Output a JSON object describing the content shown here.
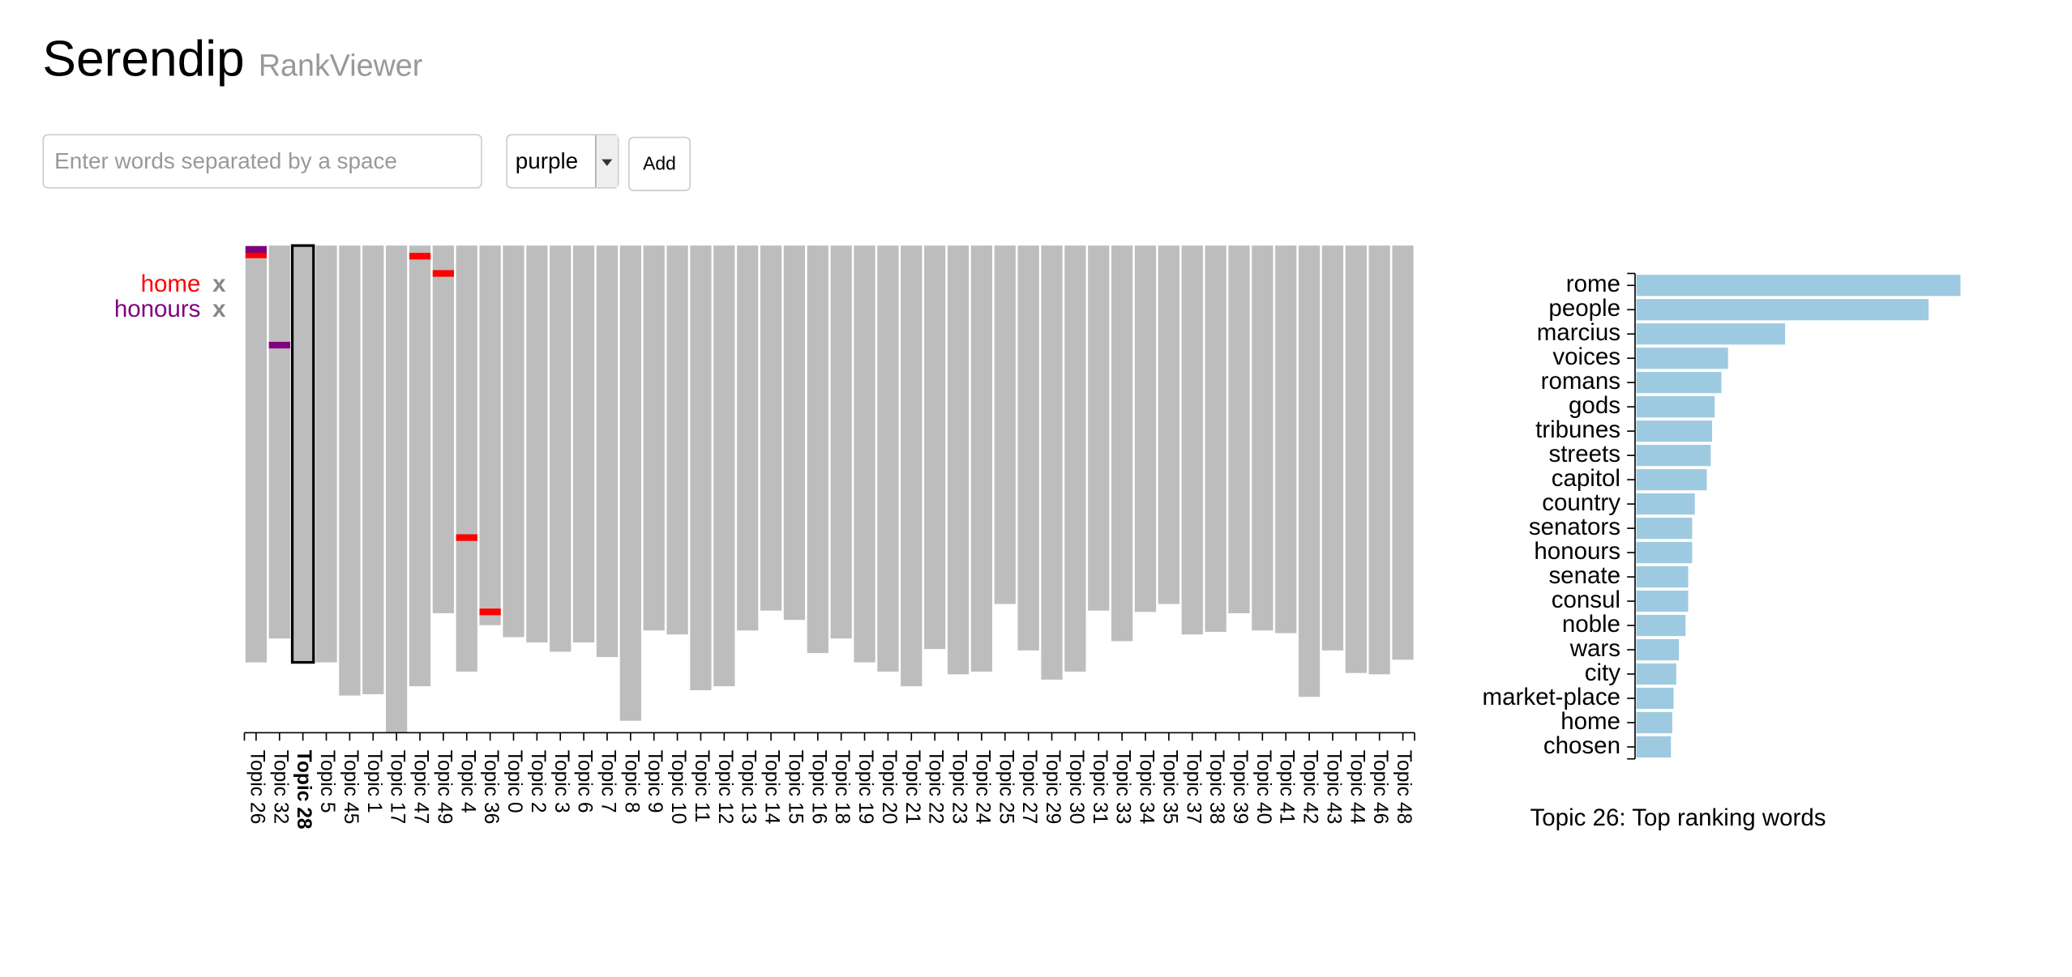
{
  "header": {
    "title": "Serendip",
    "subtitle": "RankViewer"
  },
  "controls": {
    "input_placeholder": "Enter words separated by a space",
    "color_select": "purple",
    "add_button": "Add"
  },
  "word_list": [
    {
      "word": "home",
      "color": "#ff0000",
      "remove": "x",
      "ranks": [
        7,
        null,
        null,
        null,
        null,
        null,
        null,
        8,
        21,
        220,
        276,
        null,
        null,
        null,
        null,
        null,
        null,
        null,
        null,
        null,
        null,
        null,
        null,
        null,
        null,
        null,
        null,
        null,
        null,
        null,
        null,
        null,
        null,
        null,
        null,
        null,
        null,
        null,
        null,
        null,
        null,
        null,
        null,
        null,
        null,
        null,
        null,
        null,
        null,
        null
      ]
    },
    {
      "word": "honours",
      "color": "#800080",
      "remove": "x",
      "ranks": [
        3,
        75,
        null,
        null,
        null,
        null,
        null,
        null,
        null,
        null,
        null,
        null,
        null,
        null,
        null,
        null,
        null,
        null,
        null,
        null,
        null,
        null,
        null,
        null,
        null,
        null,
        null,
        null,
        null,
        null,
        null,
        null,
        null,
        null,
        null,
        null,
        null,
        null,
        null,
        null,
        null,
        null,
        null,
        null,
        null,
        null,
        null,
        null,
        null,
        null
      ]
    }
  ],
  "rank_chart": {
    "type": "bar",
    "color": "#bdbdbd",
    "selected": 2,
    "categories": [
      "Topic 26",
      "Topic 32",
      "Topic 28",
      "Topic 5",
      "Topic 45",
      "Topic 1",
      "Topic 17",
      "Topic 47",
      "Topic 49",
      "Topic 4",
      "Topic 36",
      "Topic 0",
      "Topic 2",
      "Topic 3",
      "Topic 6",
      "Topic 7",
      "Topic 8",
      "Topic 9",
      "Topic 10",
      "Topic 11",
      "Topic 12",
      "Topic 13",
      "Topic 14",
      "Topic 15",
      "Topic 16",
      "Topic 18",
      "Topic 19",
      "Topic 20",
      "Topic 21",
      "Topic 22",
      "Topic 23",
      "Topic 24",
      "Topic 25",
      "Topic 27",
      "Topic 29",
      "Topic 30",
      "Topic 31",
      "Topic 33",
      "Topic 34",
      "Topic 35",
      "Topic 37",
      "Topic 38",
      "Topic 39",
      "Topic 40",
      "Topic 41",
      "Topic 42",
      "Topic 43",
      "Topic 44",
      "Topic 46",
      "Topic 48"
    ],
    "values": [
      314,
      296,
      314,
      314,
      339,
      338,
      367,
      332,
      277,
      321,
      286,
      295,
      299,
      306,
      299,
      310,
      358,
      290,
      293,
      335,
      332,
      290,
      275,
      282,
      307,
      296,
      314,
      321,
      332,
      304,
      323,
      321,
      270,
      305,
      327,
      321,
      275,
      298,
      276,
      270,
      293,
      291,
      277,
      290,
      292,
      340,
      305,
      322,
      323,
      312
    ]
  },
  "top_words": {
    "type": "bar",
    "title": "Topic 26: Top ranking words",
    "color": "#9ecae1",
    "categories": [
      "rome",
      "people",
      "marcius",
      "voices",
      "romans",
      "gods",
      "tribunes",
      "streets",
      "capitol",
      "country",
      "senators",
      "honours",
      "senate",
      "consul",
      "noble",
      "wars",
      "city",
      "market-place",
      "home",
      "chosen"
    ],
    "values": [
      244,
      220,
      112,
      69,
      64,
      59,
      57,
      56,
      53,
      44,
      42,
      42,
      39,
      39,
      37,
      32,
      30,
      28,
      27,
      26
    ]
  }
}
